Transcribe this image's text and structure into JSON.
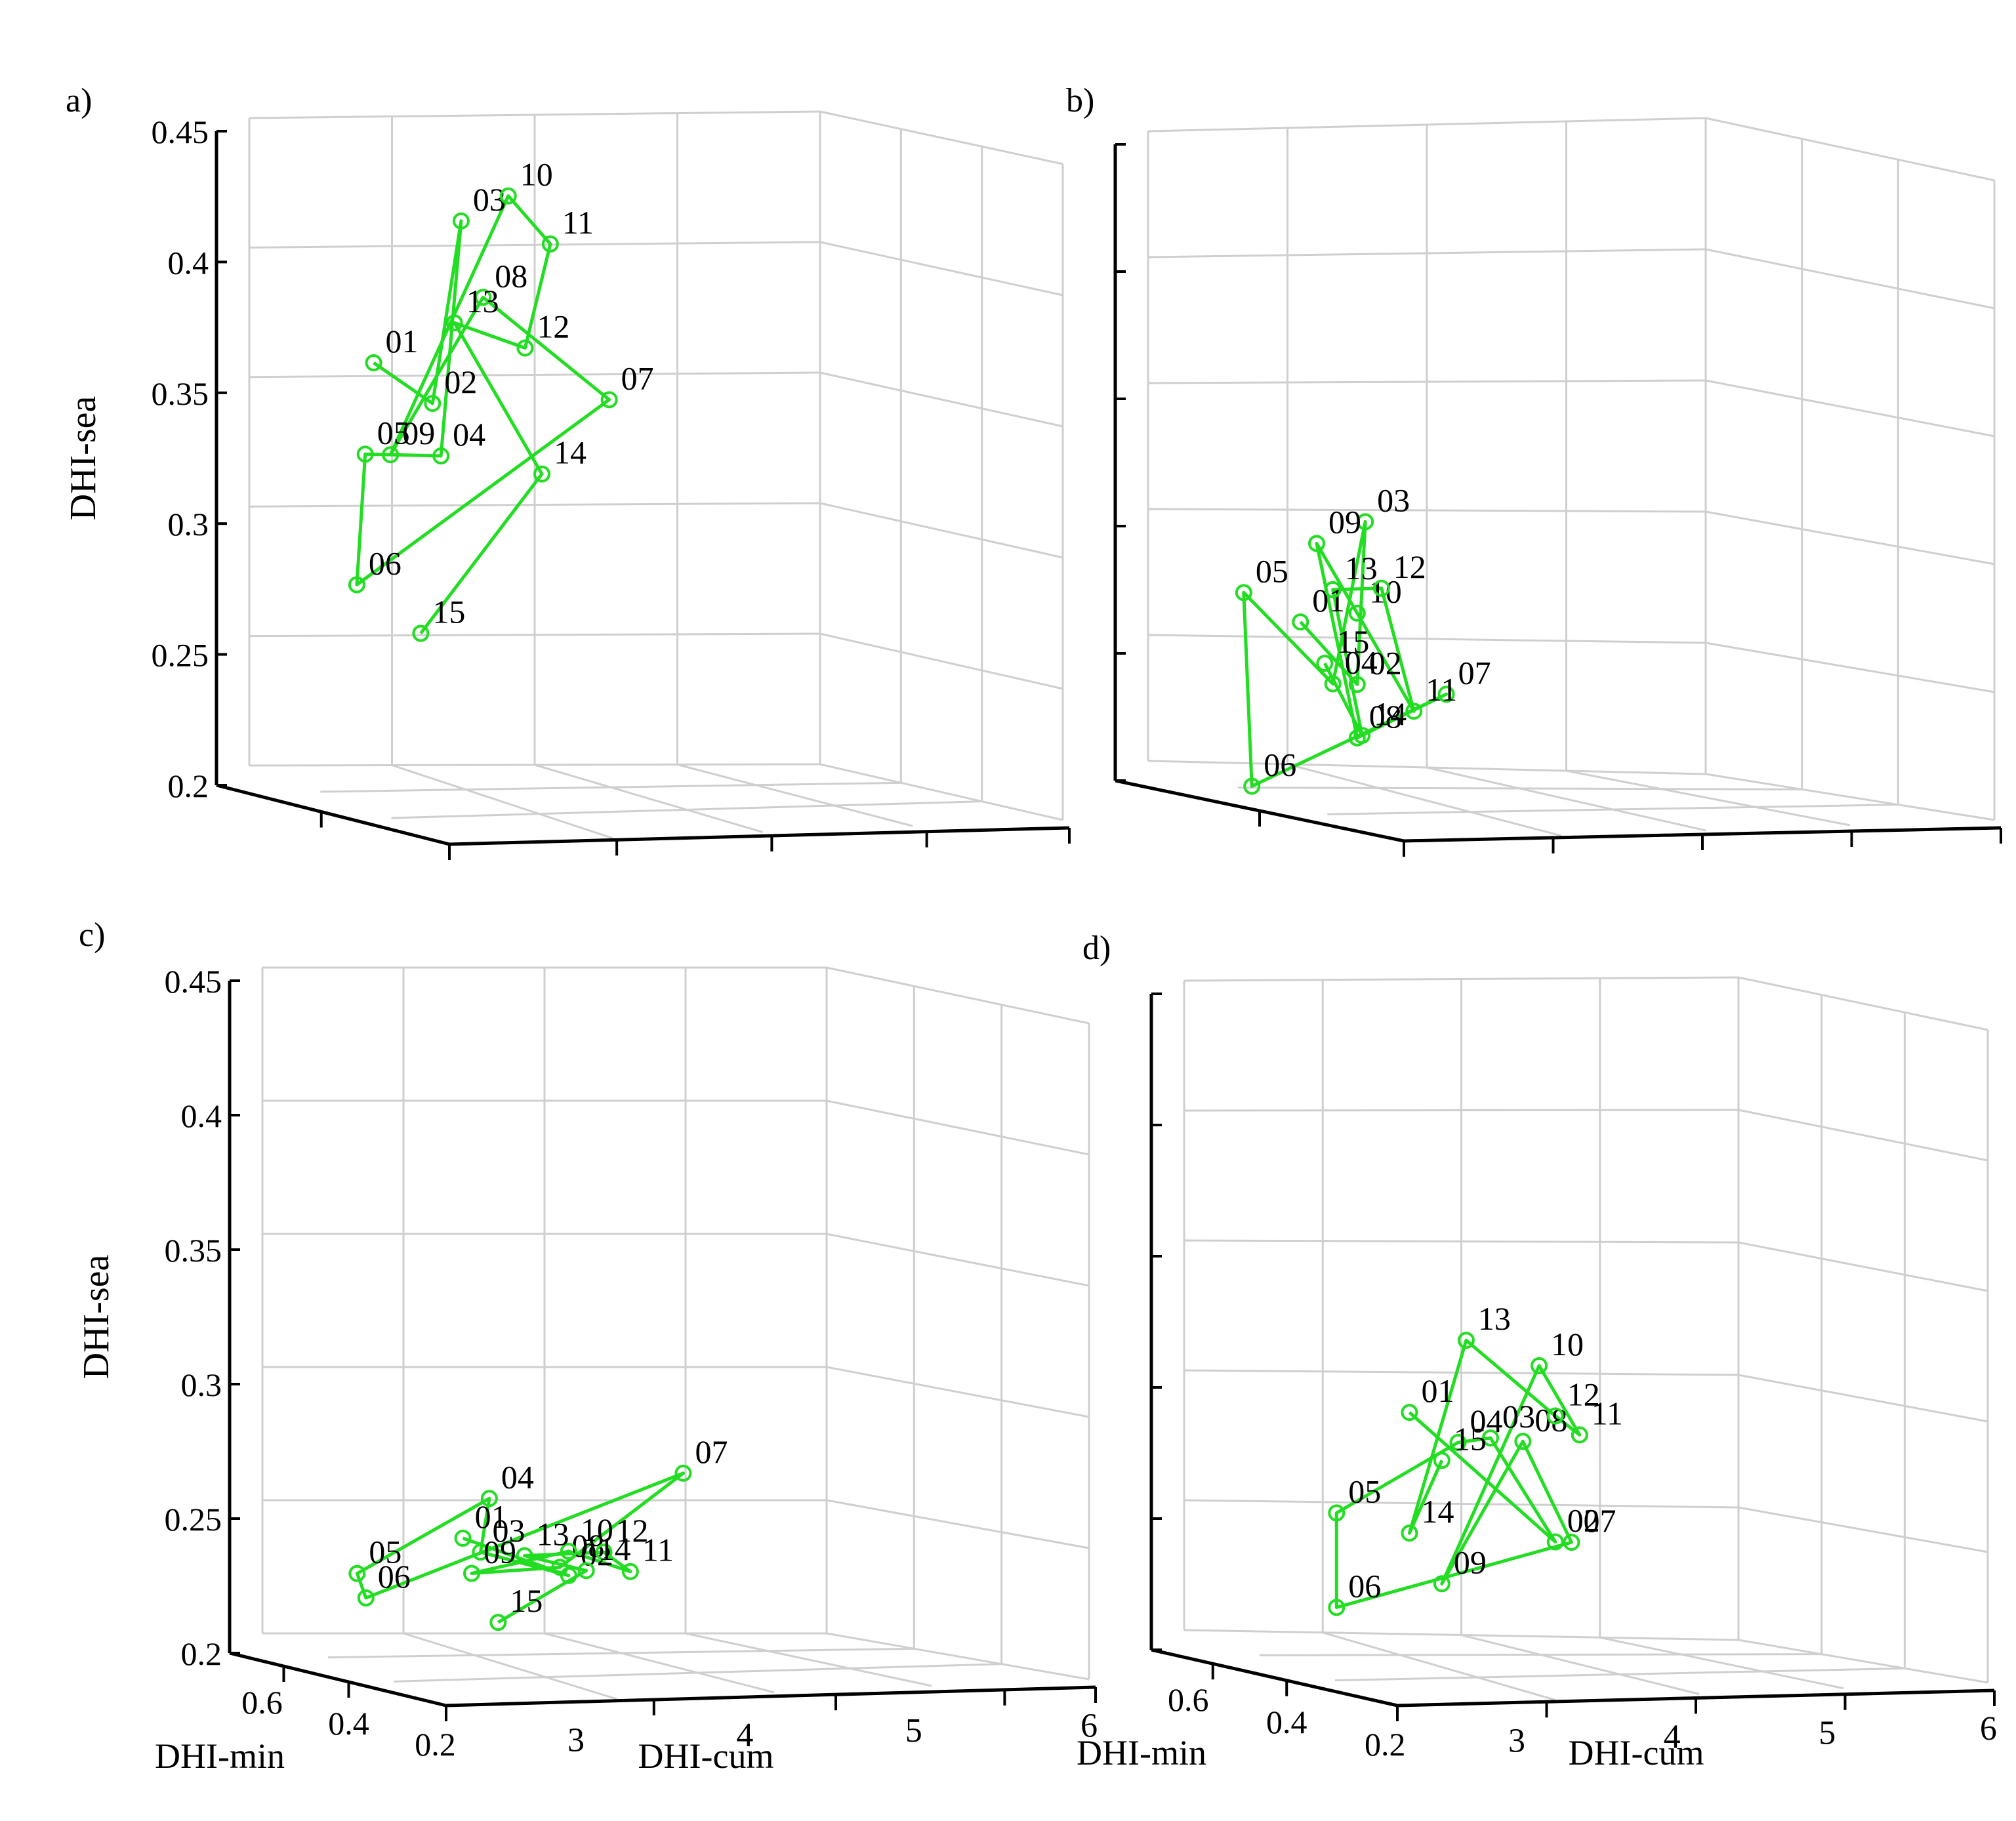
{
  "chart_data": [
    {
      "type": "line3d",
      "panel_label": "a)",
      "zlabel": "DHI-sea",
      "xlabel": "",
      "ylabel": "",
      "zlim": [
        0.2,
        0.45
      ],
      "z_ticks": [
        "0.2",
        "0.25",
        "0.3",
        "0.35",
        "0.4",
        "0.45"
      ],
      "x_tick_labels": [],
      "y_tick_labels": [],
      "series": [
        {
          "name": "path",
          "color": "#22dd22",
          "points": [
            {
              "label": "01",
              "cum": 3.2,
              "min": 0.5,
              "sea": 0.355
            },
            {
              "label": "02",
              "cum": 3.55,
              "min": 0.5,
              "sea": 0.34
            },
            {
              "label": "03",
              "cum": 3.72,
              "min": 0.5,
              "sea": 0.41
            },
            {
              "label": "04",
              "cum": 3.6,
              "min": 0.5,
              "sea": 0.32
            },
            {
              "label": "05",
              "cum": 3.15,
              "min": 0.5,
              "sea": 0.32
            },
            {
              "label": "06",
              "cum": 3.1,
              "min": 0.5,
              "sea": 0.27
            },
            {
              "label": "07",
              "cum": 4.6,
              "min": 0.5,
              "sea": 0.343
            },
            {
              "label": "08",
              "cum": 3.85,
              "min": 0.5,
              "sea": 0.381
            },
            {
              "label": "09",
              "cum": 3.3,
              "min": 0.5,
              "sea": 0.32
            },
            {
              "label": "10",
              "cum": 4.0,
              "min": 0.5,
              "sea": 0.42
            },
            {
              "label": "11",
              "cum": 4.25,
              "min": 0.5,
              "sea": 0.402
            },
            {
              "label": "12",
              "cum": 4.1,
              "min": 0.5,
              "sea": 0.362
            },
            {
              "label": "13",
              "cum": 3.68,
              "min": 0.5,
              "sea": 0.371
            },
            {
              "label": "14",
              "cum": 4.2,
              "min": 0.5,
              "sea": 0.314
            },
            {
              "label": "15",
              "cum": 3.48,
              "min": 0.5,
              "sea": 0.252
            }
          ]
        }
      ]
    },
    {
      "type": "line3d",
      "panel_label": "b)",
      "zlabel": "",
      "xlabel": "",
      "ylabel": "",
      "zlim": [
        0.2,
        0.45
      ],
      "z_ticks": [],
      "x_tick_labels": [],
      "y_tick_labels": [],
      "series": [
        {
          "name": "path",
          "color": "#22dd22",
          "points": [
            {
              "label": "01",
              "cum": 3.4,
              "min": 0.5,
              "sea": 0.256
            },
            {
              "label": "02",
              "cum": 3.75,
              "min": 0.5,
              "sea": 0.232
            },
            {
              "label": "03",
              "cum": 3.8,
              "min": 0.5,
              "sea": 0.296
            },
            {
              "label": "04",
              "cum": 3.6,
              "min": 0.5,
              "sea": 0.232
            },
            {
              "label": "05",
              "cum": 3.05,
              "min": 0.5,
              "sea": 0.267
            },
            {
              "label": "06",
              "cum": 3.1,
              "min": 0.5,
              "sea": 0.191
            },
            {
              "label": "07",
              "cum": 4.3,
              "min": 0.5,
              "sea": 0.229
            },
            {
              "label": "08",
              "cum": 3.75,
              "min": 0.5,
              "sea": 0.211
            },
            {
              "label": "09",
              "cum": 3.5,
              "min": 0.5,
              "sea": 0.287
            },
            {
              "label": "10",
              "cum": 3.75,
              "min": 0.5,
              "sea": 0.26
            },
            {
              "label": "11",
              "cum": 4.1,
              "min": 0.5,
              "sea": 0.222
            },
            {
              "label": "12",
              "cum": 3.9,
              "min": 0.5,
              "sea": 0.27
            },
            {
              "label": "13",
              "cum": 3.6,
              "min": 0.5,
              "sea": 0.269
            },
            {
              "label": "14",
              "cum": 3.78,
              "min": 0.5,
              "sea": 0.212
            },
            {
              "label": "15",
              "cum": 3.55,
              "min": 0.5,
              "sea": 0.24
            }
          ]
        }
      ]
    },
    {
      "type": "line3d",
      "panel_label": "c)",
      "zlabel": "DHI-sea",
      "xlabel": "DHI-cum",
      "ylabel": "DHI-min",
      "zlim": [
        0.2,
        0.45
      ],
      "z_ticks": [
        "0.2",
        "0.25",
        "0.3",
        "0.35",
        "0.4",
        "0.45"
      ],
      "x_tick_labels": [
        "3",
        "4",
        "5",
        "6"
      ],
      "y_tick_labels": [
        "0.6",
        "0.4",
        "0.2"
      ],
      "series": [
        {
          "name": "path",
          "color": "#22dd22",
          "points": [
            {
              "label": "01",
              "cum": 3.6,
              "min": 0.45,
              "sea": 0.237
            },
            {
              "label": "02",
              "cum": 4.2,
              "min": 0.45,
              "sea": 0.224
            },
            {
              "label": "03",
              "cum": 3.7,
              "min": 0.45,
              "sea": 0.232
            },
            {
              "label": "04",
              "cum": 3.75,
              "min": 0.45,
              "sea": 0.252
            },
            {
              "label": "05",
              "cum": 3.0,
              "min": 0.45,
              "sea": 0.223
            },
            {
              "label": "06",
              "cum": 3.05,
              "min": 0.45,
              "sea": 0.214
            },
            {
              "label": "07",
              "cum": 4.85,
              "min": 0.45,
              "sea": 0.263
            },
            {
              "label": "08",
              "cum": 4.15,
              "min": 0.45,
              "sea": 0.227
            },
            {
              "label": "09",
              "cum": 3.65,
              "min": 0.45,
              "sea": 0.224
            },
            {
              "label": "10",
              "cum": 4.2,
              "min": 0.45,
              "sea": 0.233
            },
            {
              "label": "11",
              "cum": 4.55,
              "min": 0.45,
              "sea": 0.226
            },
            {
              "label": "12",
              "cum": 4.4,
              "min": 0.45,
              "sea": 0.233
            },
            {
              "label": "13",
              "cum": 3.95,
              "min": 0.45,
              "sea": 0.231
            },
            {
              "label": "14",
              "cum": 4.3,
              "min": 0.45,
              "sea": 0.226
            },
            {
              "label": "15",
              "cum": 3.8,
              "min": 0.45,
              "sea": 0.206
            }
          ]
        }
      ]
    },
    {
      "type": "line3d",
      "panel_label": "d)",
      "zlabel": "",
      "xlabel": "DHI-cum",
      "ylabel": "DHI-min",
      "zlim": [
        0.2,
        0.45
      ],
      "z_ticks": [],
      "x_tick_labels": [
        "3",
        "4",
        "5",
        "6"
      ],
      "y_tick_labels": [
        "0.6",
        "0.4",
        "0.2"
      ],
      "series": [
        {
          "name": "path",
          "color": "#22dd22",
          "points": [
            {
              "label": "01",
              "cum": 3.85,
              "min": 0.45,
              "sea": 0.285
            },
            {
              "label": "02",
              "cum": 4.75,
              "min": 0.45,
              "sea": 0.237
            },
            {
              "label": "03",
              "cum": 4.35,
              "min": 0.45,
              "sea": 0.276
            },
            {
              "label": "04",
              "cum": 4.15,
              "min": 0.45,
              "sea": 0.274
            },
            {
              "label": "05",
              "cum": 3.4,
              "min": 0.45,
              "sea": 0.246
            },
            {
              "label": "06",
              "cum": 3.4,
              "min": 0.45,
              "sea": 0.21
            },
            {
              "label": "07",
              "cum": 4.85,
              "min": 0.45,
              "sea": 0.237
            },
            {
              "label": "08",
              "cum": 4.55,
              "min": 0.45,
              "sea": 0.275
            },
            {
              "label": "09",
              "cum": 4.05,
              "min": 0.45,
              "sea": 0.22
            },
            {
              "label": "10",
              "cum": 4.65,
              "min": 0.45,
              "sea": 0.304
            },
            {
              "label": "11",
              "cum": 4.9,
              "min": 0.45,
              "sea": 0.278
            },
            {
              "label": "12",
              "cum": 4.75,
              "min": 0.45,
              "sea": 0.285
            },
            {
              "label": "13",
              "cum": 4.2,
              "min": 0.45,
              "sea": 0.313
            },
            {
              "label": "14",
              "cum": 3.85,
              "min": 0.45,
              "sea": 0.239
            },
            {
              "label": "15",
              "cum": 4.05,
              "min": 0.45,
              "sea": 0.267
            }
          ]
        }
      ]
    }
  ]
}
